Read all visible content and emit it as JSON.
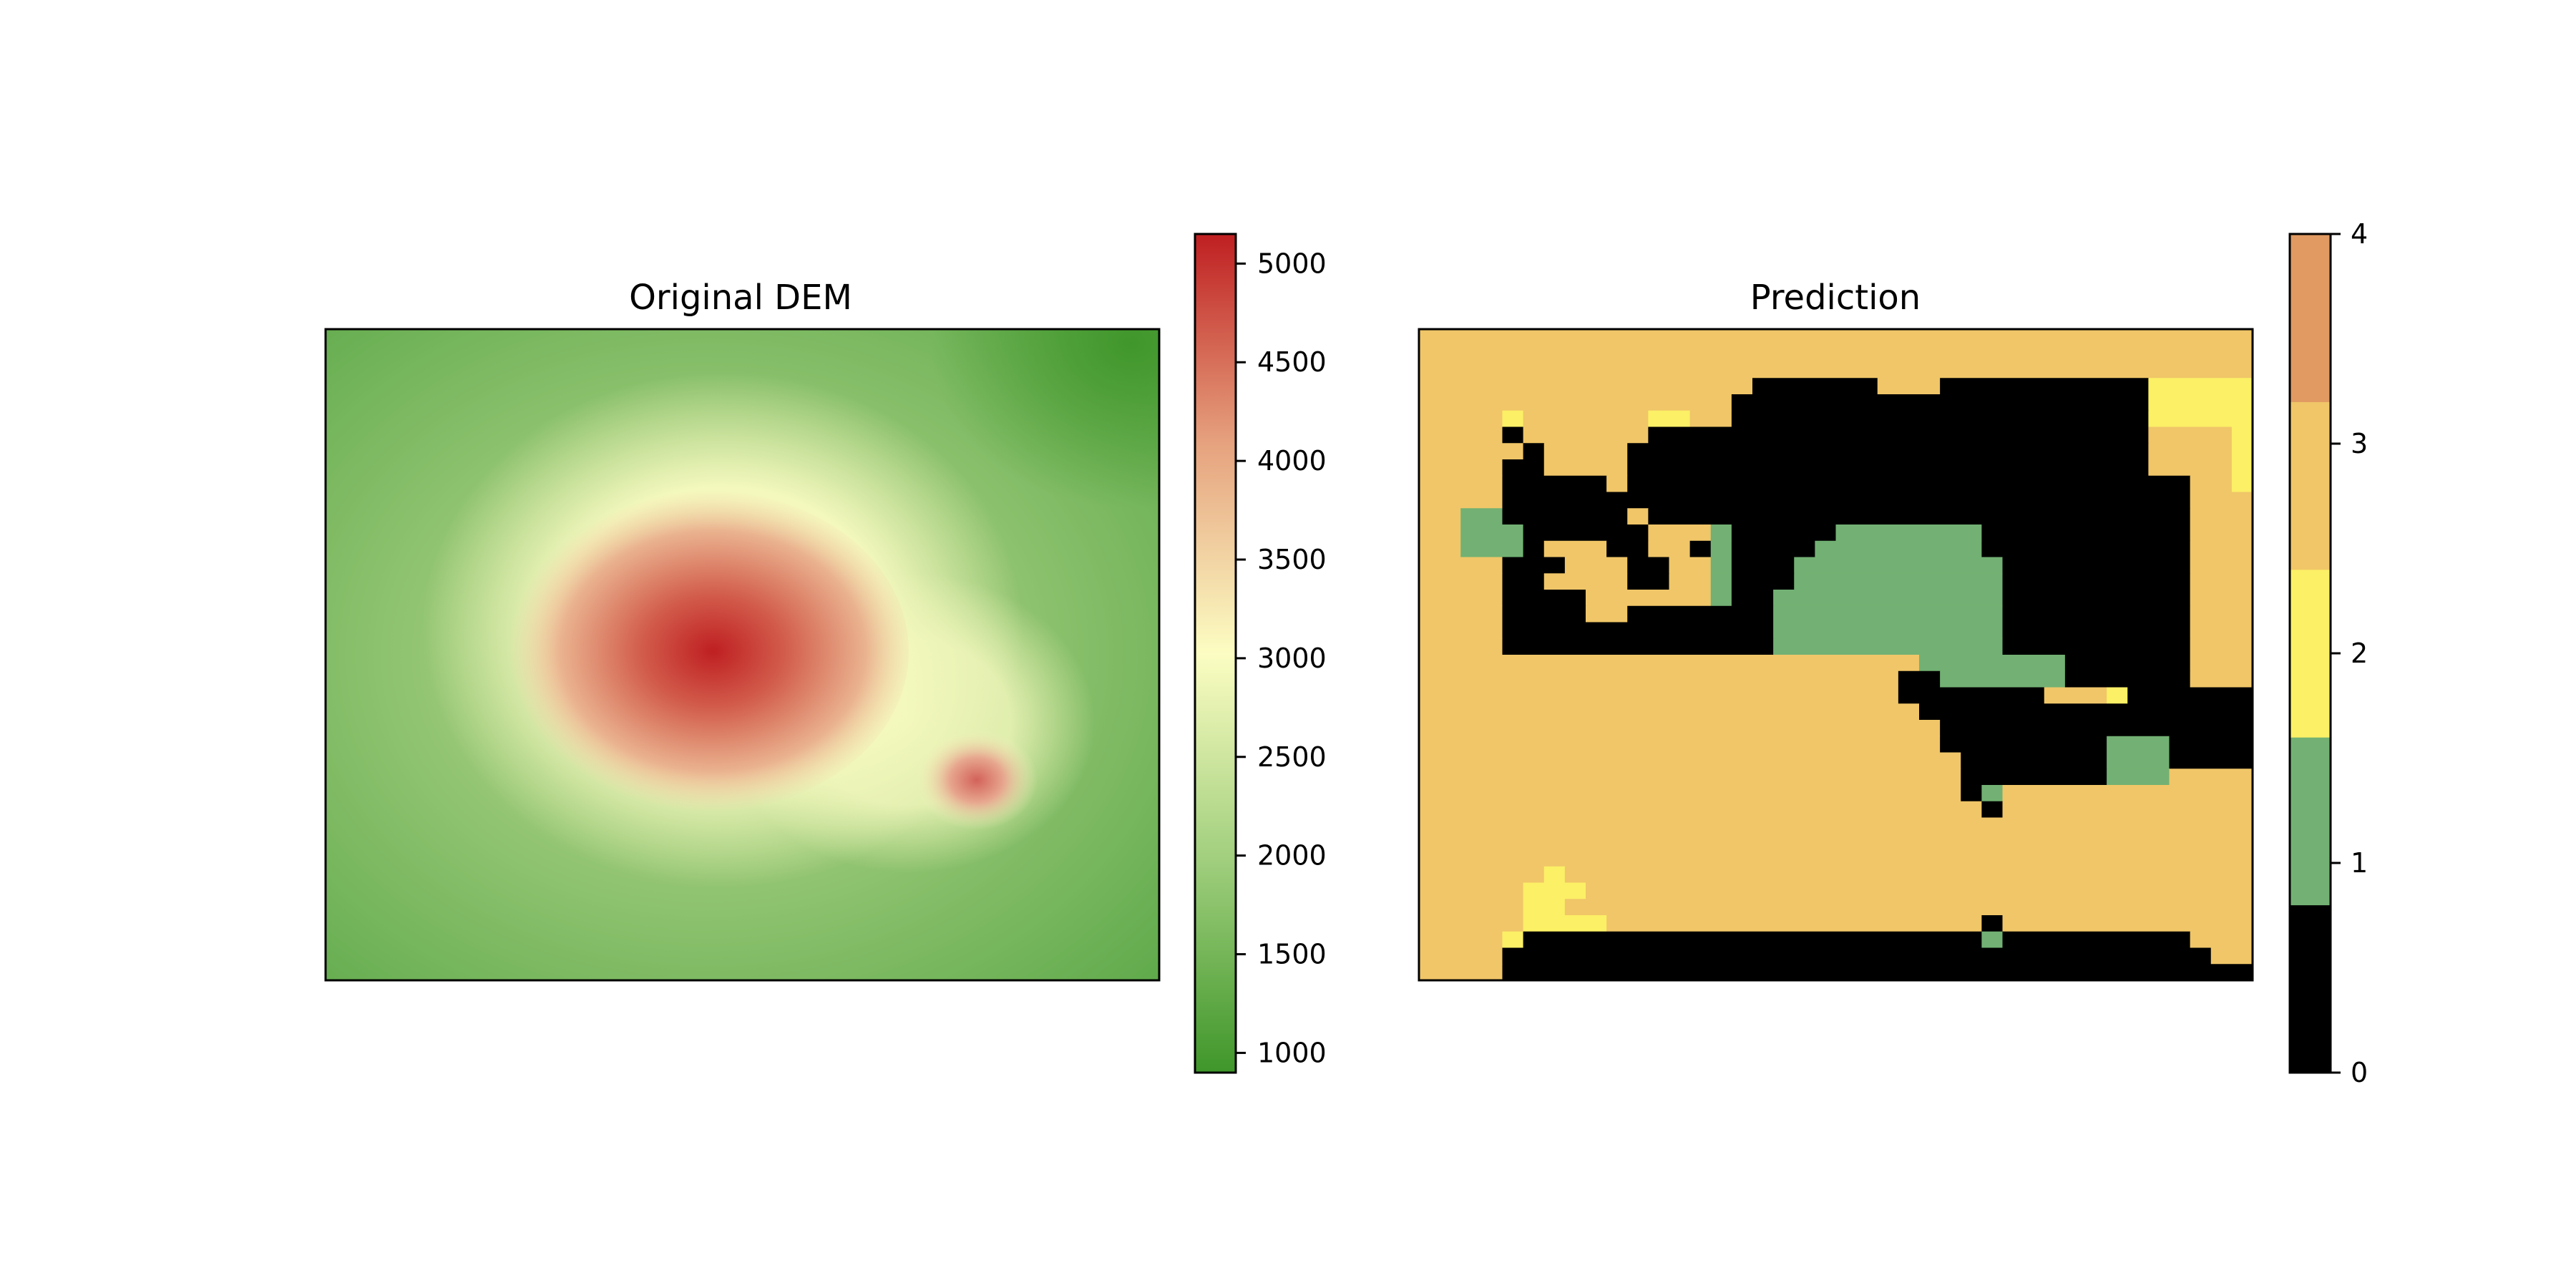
{
  "chart_data": [
    {
      "type": "heatmap",
      "title": "Original DEM",
      "colorbar": {
        "colormap": "green-yellow-red (RdYlGn reversed)",
        "range": [
          900,
          5150
        ],
        "ticks": [
          1000,
          1500,
          2000,
          2500,
          3000,
          3500,
          4000,
          4500,
          5000
        ]
      },
      "features": [
        {
          "peak": "main massif",
          "value": 5000
        },
        {
          "peak": "secondary cone",
          "value": 4000
        }
      ],
      "colors": {
        "low": "#3f962a",
        "mid": "#fcfdc2",
        "high": "#bf1f21"
      }
    },
    {
      "type": "heatmap",
      "title": "Prediction",
      "colorbar": {
        "ticks": [
          0,
          1,
          2,
          3,
          4
        ],
        "classes": [
          {
            "value": 0,
            "color": "#000000"
          },
          {
            "value": 1,
            "color": "#72b173"
          },
          {
            "value": 2,
            "color": "#fcf066"
          },
          {
            "value": 3,
            "color": "#f0c668"
          },
          {
            "value": 4,
            "color": "#e09a62"
          }
        ]
      },
      "grid": [
        "3333333333333333333333333333333333333333",
        "3333333333333333333333333333333333333333",
        "3333333333333333333333333333333333333333",
        "3333333333333333000000333000000000022222",
        "3333333333333330000000000000000000022222",
        "3333233333322330000000000000000000022222",
        "3333033333300000000000000000000000033332",
        "3333303333000000000000000000000000033332",
        "3333003333000000000000000000000000033332",
        "3333000003000000000000000000000000000332",
        "3333000000000000000000000000000000000333",
        "3311000000300000000000000000000000000333",
        "3311100000033310000011111110000000000333",
        "3311103330033010000111111110000000000333",
        "3333000333003310001111111111000000000333",
        "3333003333003310001111111111000000000333",
        "3333000033333310011111111111000000000333",
        "3333000033000000011111111111000000000333",
        "3333000000000000011111111111000000000333",
        "3333000000000000011111111111000000000333",
        "3333333333333333333333331111111000000333",
        "3333333333333333333333300111111000000333",
        "3333333333333333333333300000003332000000",
        "3333333333333333333333330000000000000000",
        "3333333333333333333333333000000000000000",
        "3333333333333333333333333000000001110000",
        "3333333333333333333333333300000001110000",
        "3333333333333333333333333300000001113333",
        "3333333333333333333333333301333333333333",
        "3333333333333333333333333330333333333333",
        "3333333333333333333333333333333333333333",
        "3333333333333333333333333333333333333333",
        "3333333333333333333333333333333333333333",
        "3333332333333333333333333333333333333333",
        "3333322233333333333333333333333333333333",
        "3333322333333333333333333333333333333333",
        "3333322223333333333333333330333333333333",
        "3333200000000000000000000001000000000333",
        "3333000000000000000000000000000000000033",
        "3333000000000000000000000000000000000000"
      ]
    }
  ]
}
